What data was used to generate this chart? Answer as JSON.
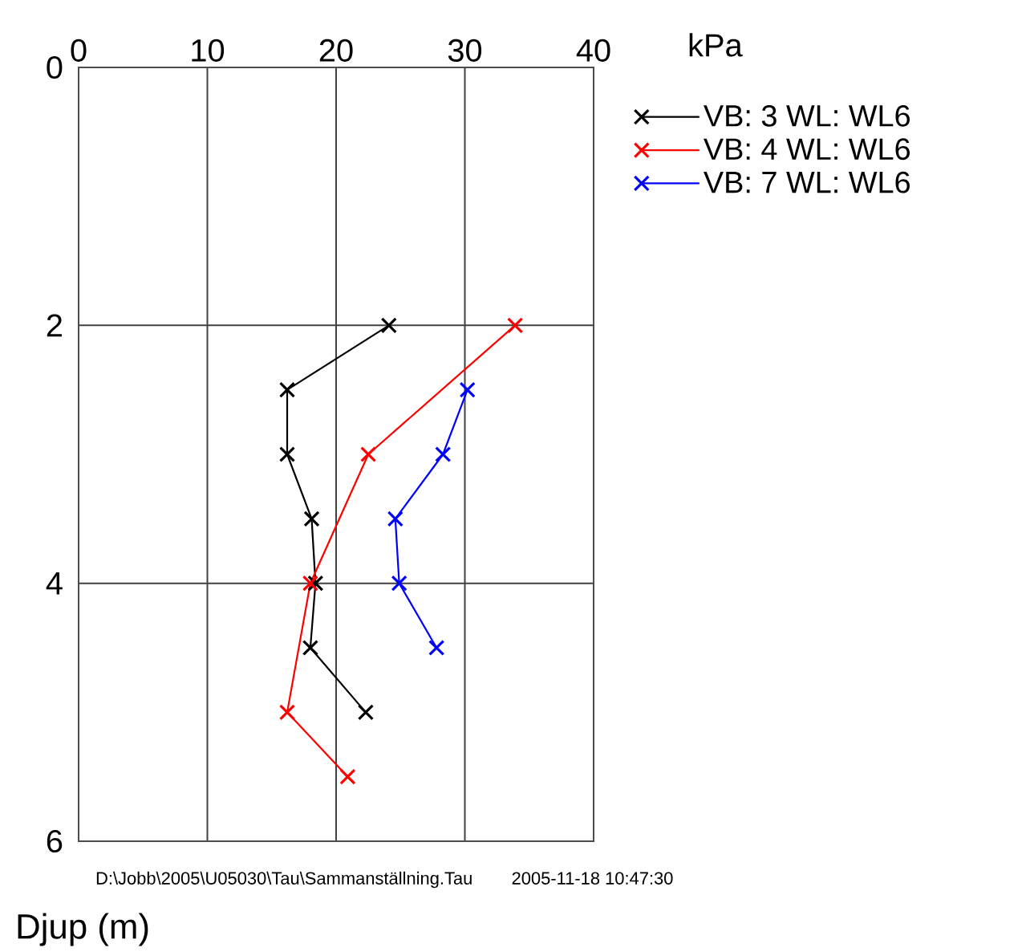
{
  "chart_data": {
    "type": "line",
    "xlabel": "kPa",
    "ylabel": "Djup (m)",
    "xlim": [
      0,
      40
    ],
    "xticks": [
      0,
      10,
      20,
      30,
      40
    ],
    "ylim": [
      6,
      0
    ],
    "yticks": [
      0,
      2,
      4,
      6
    ],
    "grid": true,
    "legend": "top right",
    "marker": "cross",
    "line_style": "solid",
    "annotations": [
      "D:\\Jobb\\2005\\U05030\\Tau\\Sammanställning.Tau",
      "2005-11-18 10:47:30"
    ],
    "series": [
      {
        "name": "VB: 3   WL: WL6",
        "color": "#000000",
        "x": [
          24.1,
          16.2,
          16.2,
          18.1,
          18.4,
          18.0,
          22.3
        ],
        "values": [
          2,
          2.5,
          3,
          3.5,
          4,
          4.5,
          5
        ]
      },
      {
        "name": "VB: 4   WL: WL6",
        "color": "#ff0000",
        "x": [
          33.9,
          22.5,
          18.0,
          16.2,
          20.9
        ],
        "values": [
          2,
          3,
          4,
          5,
          5.5
        ]
      },
      {
        "name": "VB: 7   WL: WL6",
        "color": "#0000ff",
        "x": [
          30.2,
          28.3,
          24.6,
          24.9,
          27.8
        ],
        "values": [
          2.5,
          3,
          3.5,
          4,
          4.5
        ]
      }
    ]
  }
}
